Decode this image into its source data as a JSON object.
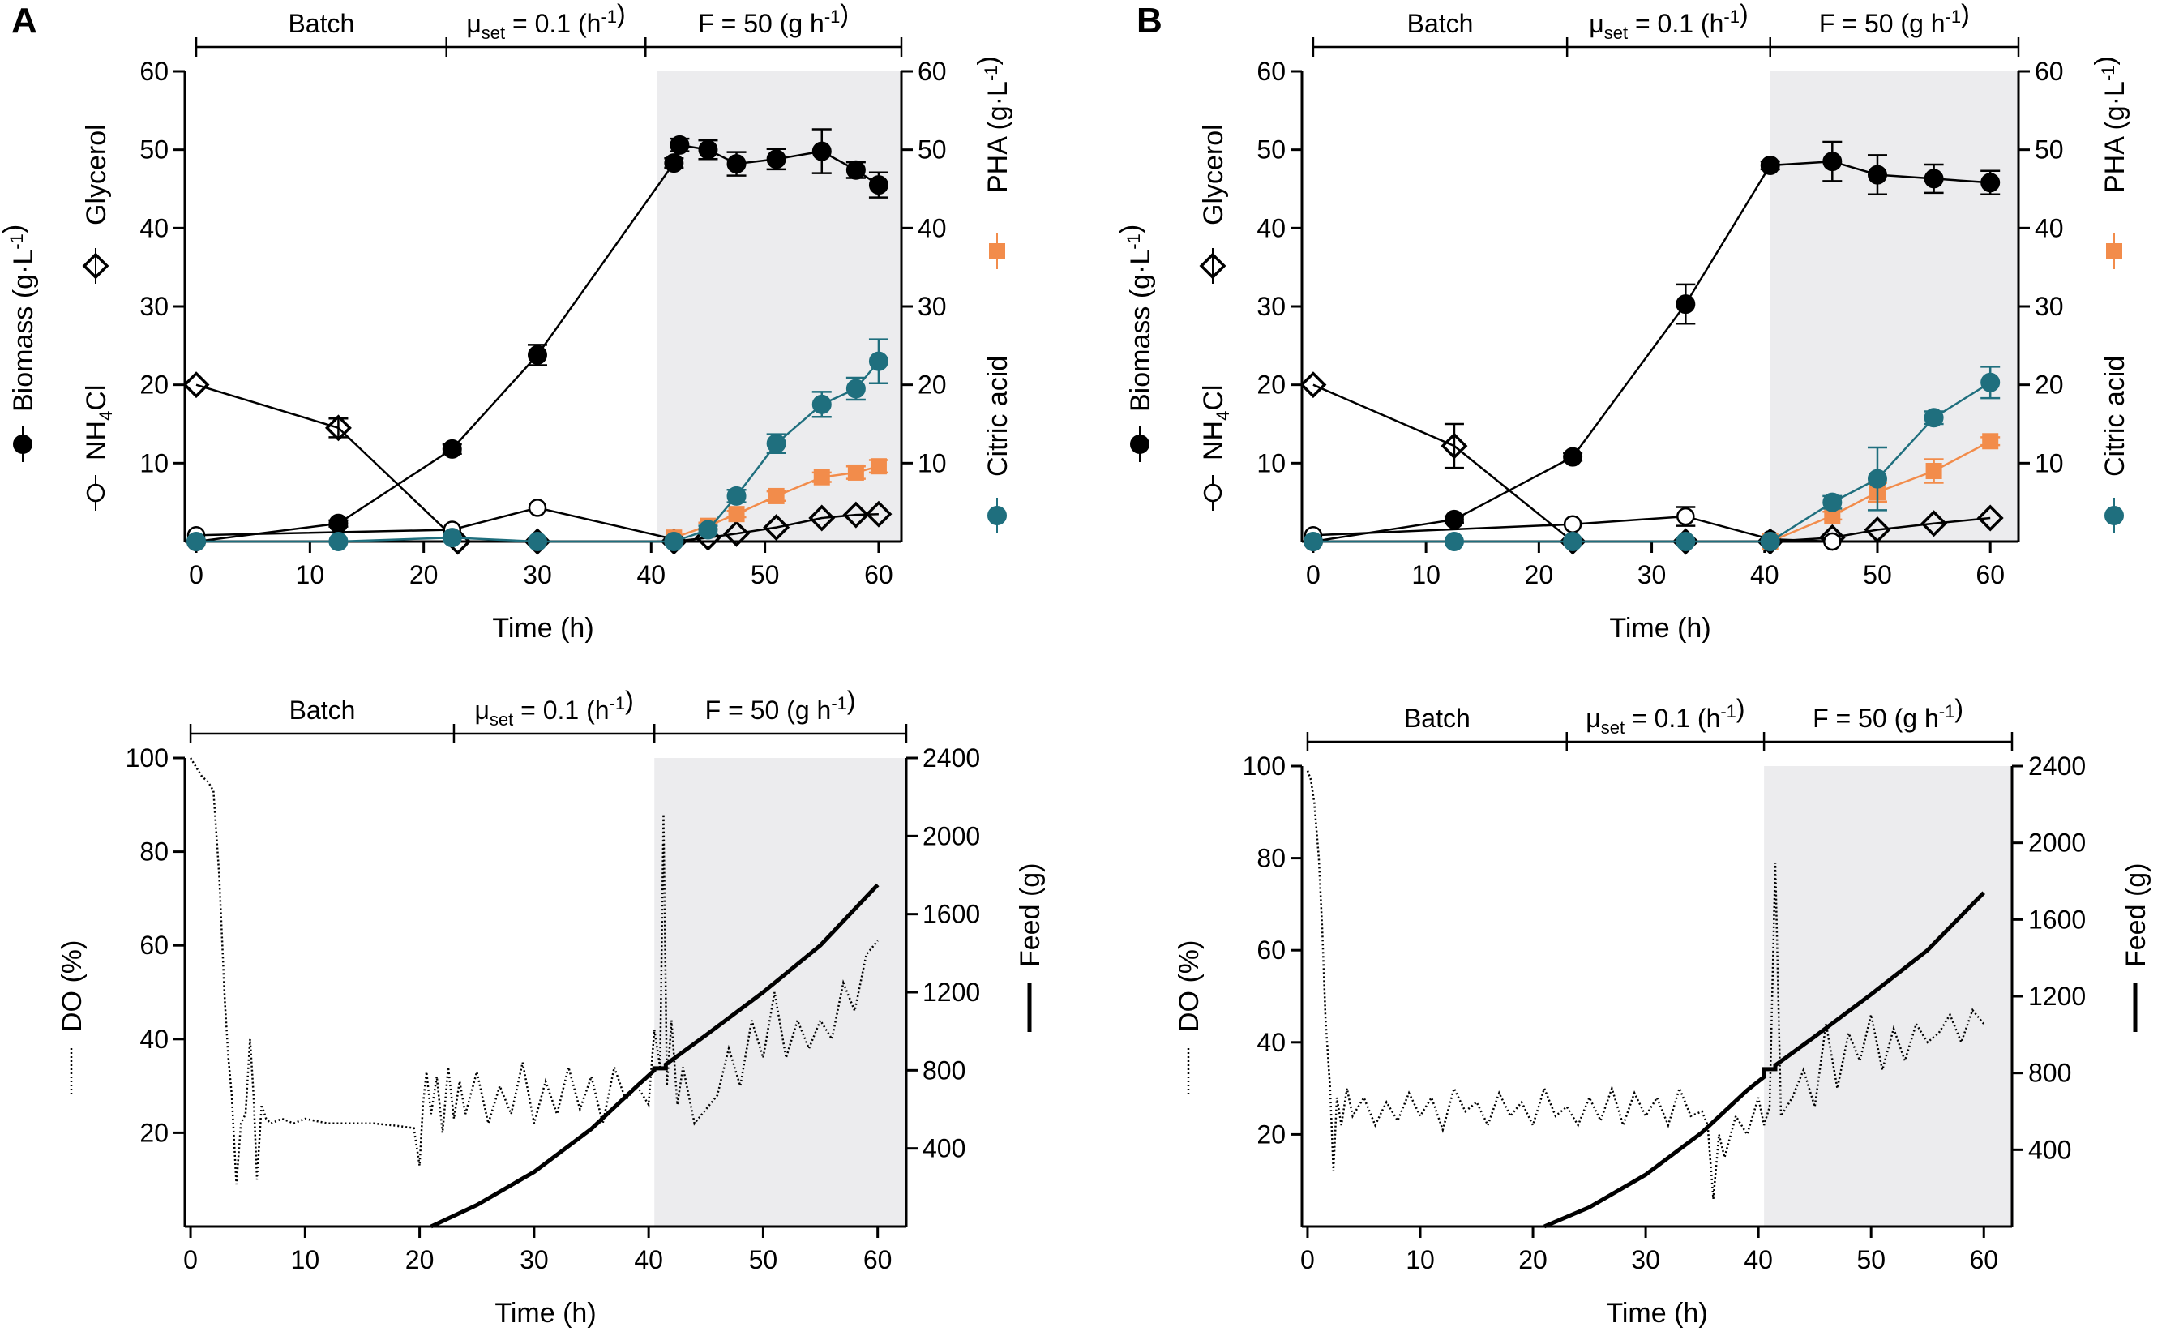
{
  "figure": {
    "panels": [
      {
        "letter": "A"
      },
      {
        "letter": "B"
      }
    ]
  },
  "colors": {
    "biomass": "#000000",
    "pha": "#f28c4b",
    "citric": "#1f6f7e",
    "shade": "#ececee"
  },
  "chart_data": [
    {
      "id": "A-top",
      "type": "scatter",
      "panel": "A",
      "phases": [
        {
          "label": "Batch",
          "x_start": 0,
          "x_end": 22
        },
        {
          "label": "μset = 0.1 (h⁻¹)",
          "x_start": 22,
          "x_end": 39.5
        },
        {
          "label": "F = 50 (g h⁻¹)",
          "x_start": 39.5,
          "x_end": 61
        }
      ],
      "shaded_region": [
        40.5,
        61
      ],
      "xlabel": "Time (h)",
      "xlim": [
        -1,
        62
      ],
      "xticks": [
        0,
        10,
        20,
        30,
        40,
        50,
        60
      ],
      "ylim": [
        0,
        60
      ],
      "yticks": [
        10,
        20,
        30,
        40,
        50,
        60
      ],
      "y2lim": [
        0,
        60
      ],
      "y2ticks": [
        10,
        20,
        30,
        40,
        50,
        60
      ],
      "ylabel": "Biomass (g·L⁻¹), NH4Cl, Glycerol",
      "y2label": "PHA (g·L⁻¹), Citric acid",
      "series": [
        {
          "name": "Biomass",
          "marker": "filled-circle",
          "x": [
            0,
            12.5,
            22.5,
            30,
            42,
            42.5,
            45,
            47.5,
            51,
            55,
            58,
            60
          ],
          "y": [
            0,
            2.3,
            11.8,
            23.8,
            48.3,
            50.6,
            50,
            48.2,
            48.8,
            49.8,
            47.4,
            45.5
          ],
          "err": [
            0,
            0.4,
            0.6,
            1.3,
            0.6,
            0.8,
            1.2,
            1.5,
            1.3,
            2.8,
            1.0,
            1.6
          ]
        },
        {
          "name": "Glycerol",
          "marker": "open-diamond",
          "x": [
            0,
            12.5,
            23,
            30,
            42,
            45,
            47.5,
            51,
            55,
            58,
            60
          ],
          "y": [
            20,
            14.5,
            0,
            0,
            0,
            0.5,
            1,
            1.8,
            3,
            3.4,
            3.5
          ],
          "err": [
            0,
            1.2,
            0,
            0,
            0,
            0,
            0,
            0,
            0,
            0,
            0
          ]
        },
        {
          "name": "NH4Cl",
          "marker": "open-circle",
          "x": [
            0,
            22.5,
            30,
            42
          ],
          "y": [
            0.8,
            1.5,
            4.3,
            0.3
          ],
          "err": [
            0,
            0,
            0,
            0
          ]
        },
        {
          "name": "PHA",
          "marker": "filled-square",
          "axis": "right",
          "x": [
            42,
            45,
            47.5,
            51,
            55,
            58,
            60
          ],
          "y": [
            0.5,
            2,
            3.5,
            5.8,
            8.2,
            8.8,
            9.6
          ],
          "err": [
            0,
            0.4,
            0.4,
            0.6,
            0.6,
            0.8,
            0.8
          ]
        },
        {
          "name": "Citric acid",
          "marker": "filled-circle",
          "axis": "right",
          "x": [
            0,
            12.5,
            22.5,
            30,
            42,
            45,
            47.5,
            51,
            55,
            58,
            60
          ],
          "y": [
            0,
            0,
            0.5,
            0,
            0,
            1.5,
            5.8,
            12.5,
            17.5,
            19.5,
            23
          ],
          "err": [
            0,
            0,
            0,
            0,
            0,
            0.5,
            0.8,
            1.2,
            1.6,
            1.4,
            2.8
          ]
        }
      ]
    },
    {
      "id": "B-top",
      "type": "scatter",
      "panel": "B",
      "phases": [
        {
          "label": "Batch",
          "x_start": 0,
          "x_end": 22.5
        },
        {
          "label": "μset = 0.1 (h⁻¹)",
          "x_start": 22.5,
          "x_end": 40.5
        },
        {
          "label": "F = 50 (g h⁻¹)",
          "x_start": 40.5,
          "x_end": 62
        }
      ],
      "shaded_region": [
        40.5,
        62
      ],
      "xlabel": "Time (h)",
      "xlim": [
        -1,
        62.5
      ],
      "xticks": [
        0,
        10,
        20,
        30,
        40,
        50,
        60
      ],
      "ylim": [
        0,
        60
      ],
      "yticks": [
        10,
        20,
        30,
        40,
        50,
        60
      ],
      "y2lim": [
        0,
        60
      ],
      "y2ticks": [
        10,
        20,
        30,
        40,
        50,
        60
      ],
      "ylabel": "Biomass (g·L⁻¹), NH4Cl, Glycerol",
      "y2label": "PHA (g·L⁻¹), Citric acid",
      "series": [
        {
          "name": "Biomass",
          "marker": "filled-circle",
          "x": [
            0,
            12.5,
            23,
            33,
            40.5,
            46,
            50,
            55,
            60
          ],
          "y": [
            0,
            2.8,
            10.8,
            30.3,
            48,
            48.5,
            46.8,
            46.3,
            45.8
          ],
          "err": [
            0,
            0.4,
            0.5,
            2.5,
            0.5,
            2.5,
            2.5,
            1.8,
            1.5
          ]
        },
        {
          "name": "Glycerol",
          "marker": "open-diamond",
          "x": [
            0,
            12.5,
            23,
            33,
            40.5,
            46,
            50,
            55,
            60
          ],
          "y": [
            20,
            12.2,
            0,
            0,
            0,
            0.5,
            1.5,
            2.3,
            3
          ],
          "err": [
            0,
            2.8,
            0,
            0,
            0,
            0,
            0,
            0,
            0
          ]
        },
        {
          "name": "NH4Cl",
          "marker": "open-circle",
          "x": [
            0,
            23,
            33,
            40.5,
            46
          ],
          "y": [
            0.8,
            2.2,
            3.2,
            0.3,
            0
          ],
          "err": [
            0,
            0,
            1.2,
            0,
            0
          ]
        },
        {
          "name": "PHA",
          "marker": "filled-square",
          "axis": "right",
          "x": [
            40.5,
            46,
            50,
            55,
            60
          ],
          "y": [
            0,
            3.3,
            6.3,
            9,
            12.8
          ],
          "err": [
            0,
            0.5,
            1.2,
            1.5,
            0.5
          ]
        },
        {
          "name": "Citric acid",
          "marker": "filled-circle",
          "axis": "right",
          "x": [
            0,
            12.5,
            23,
            33,
            40.5,
            46,
            50,
            55,
            60
          ],
          "y": [
            0,
            0,
            0,
            0,
            0,
            5,
            8,
            15.8,
            20.3
          ],
          "err": [
            0,
            0,
            0,
            0,
            0,
            0.8,
            4,
            0.8,
            2
          ]
        }
      ]
    },
    {
      "id": "A-bottom",
      "type": "line",
      "panel": "A",
      "phases": [
        {
          "label": "Batch",
          "x_start": 0,
          "x_end": 23
        },
        {
          "label": "μset = 0.1 (h⁻¹)",
          "x_start": 23,
          "x_end": 40.5
        },
        {
          "label": "F = 50 (g h⁻¹)",
          "x_start": 40.5,
          "x_end": 62
        }
      ],
      "shaded_region": [
        40.5,
        62
      ],
      "xlabel": "Time (h)",
      "xlim": [
        -0.5,
        62.5
      ],
      "xticks": [
        0,
        10,
        20,
        30,
        40,
        50,
        60
      ],
      "ylim": [
        0,
        100
      ],
      "yticks": [
        20,
        40,
        60,
        80,
        100
      ],
      "y2lim": [
        0,
        2400
      ],
      "y2ticks": [
        400,
        800,
        1200,
        1600,
        2000,
        2400
      ],
      "ylabel": "DO (%)",
      "y2label": "Feed (g)",
      "series": [
        {
          "name": "DO",
          "style": "dotted",
          "x": [
            0,
            0.5,
            1,
            1.5,
            2,
            2.5,
            3,
            3.3,
            3.6,
            4,
            4.4,
            4.8,
            5.2,
            5.5,
            5.8,
            6.2,
            6.6,
            7,
            8,
            9,
            10,
            12,
            14,
            16,
            18,
            19.5,
            20,
            20.3,
            20.6,
            21,
            21.5,
            22,
            22.5,
            23,
            23.5,
            24,
            25,
            26,
            27,
            28,
            29,
            30,
            31,
            32,
            33,
            34,
            35,
            36,
            37,
            38,
            39,
            40,
            40.5,
            41,
            41.3,
            41.6,
            42,
            42.5,
            43,
            44,
            45,
            46,
            47,
            48,
            49,
            50,
            51,
            52,
            53,
            54,
            55,
            56,
            57,
            58,
            59,
            60
          ],
          "y": [
            100,
            98,
            96,
            95,
            93,
            75,
            48,
            36,
            28,
            9,
            22,
            24,
            40,
            28,
            10,
            26,
            23,
            22,
            23,
            22,
            23,
            22,
            22,
            22,
            21.5,
            21,
            13,
            26,
            33,
            24,
            32,
            20,
            34,
            23,
            31,
            24,
            33,
            22,
            30,
            24,
            35,
            22,
            31,
            24,
            34,
            25,
            32,
            22,
            34,
            27,
            30,
            26,
            42,
            34,
            88,
            30,
            44,
            26,
            34,
            22,
            25,
            28,
            38,
            30,
            44,
            36,
            50,
            36,
            44,
            38,
            44,
            40,
            52,
            46,
            58,
            61
          ]
        },
        {
          "name": "Feed",
          "style": "solid",
          "axis": "right",
          "x": [
            21,
            25,
            30,
            35,
            39,
            40.5,
            40.5,
            41.5,
            41.5,
            45,
            50,
            55,
            60
          ],
          "y": [
            0,
            110,
            280,
            500,
            720,
            800,
            810,
            810,
            830,
            980,
            1200,
            1440,
            1750
          ]
        }
      ]
    },
    {
      "id": "B-bottom",
      "type": "line",
      "panel": "B",
      "phases": [
        {
          "label": "Batch",
          "x_start": 0,
          "x_end": 23
        },
        {
          "label": "μset = 0.1 (h⁻¹)",
          "x_start": 23,
          "x_end": 40.5
        },
        {
          "label": "F = 50 (g h⁻¹)",
          "x_start": 40.5,
          "x_end": 62
        }
      ],
      "shaded_region": [
        40.5,
        62
      ],
      "xlabel": "Time (h)",
      "xlim": [
        -0.5,
        62.5
      ],
      "xticks": [
        0,
        10,
        20,
        30,
        40,
        50,
        60
      ],
      "ylim": [
        0,
        100
      ],
      "yticks": [
        20,
        40,
        60,
        80,
        100
      ],
      "y2lim": [
        0,
        2400
      ],
      "y2ticks": [
        400,
        800,
        1200,
        1600,
        2000,
        2400
      ],
      "ylabel": "DO (%)",
      "y2label": "Feed (g)",
      "series": [
        {
          "name": "DO",
          "style": "dotted",
          "x": [
            0,
            0.3,
            0.6,
            1,
            1.3,
            1.6,
            2,
            2.3,
            2.6,
            3,
            3.5,
            4,
            5,
            6,
            7,
            8,
            9,
            10,
            11,
            12,
            13,
            14,
            15,
            16,
            17,
            18,
            19,
            20,
            21,
            22,
            23,
            24,
            25,
            26,
            27,
            28,
            29,
            30,
            31,
            32,
            33,
            34,
            35,
            35.5,
            36,
            36.5,
            37,
            38,
            39,
            40,
            40.5,
            41,
            41.5,
            42,
            43,
            44,
            45,
            46,
            47,
            48,
            49,
            50,
            51,
            52,
            53,
            54,
            55,
            56,
            57,
            58,
            59,
            60
          ],
          "y": [
            99,
            97,
            92,
            80,
            65,
            45,
            30,
            12,
            28,
            22,
            30,
            24,
            28,
            22,
            27,
            23,
            29,
            24,
            28,
            21,
            30,
            25,
            27,
            22,
            29,
            24,
            27,
            22,
            30,
            24,
            26,
            22,
            28,
            23,
            30,
            22,
            29,
            24,
            28,
            22,
            30,
            24,
            25,
            22,
            6,
            20,
            15,
            24,
            20,
            28,
            22,
            26,
            79,
            24,
            28,
            34,
            26,
            44,
            30,
            42,
            36,
            46,
            34,
            43,
            36,
            44,
            40,
            42,
            46,
            40,
            47,
            44
          ]
        },
        {
          "name": "Feed",
          "style": "solid",
          "axis": "right",
          "x": [
            21,
            25,
            30,
            35,
            39,
            40.5,
            40.5,
            41.5,
            41.5,
            45,
            50,
            55,
            60
          ],
          "y": [
            0,
            100,
            270,
            490,
            710,
            780,
            820,
            820,
            840,
            990,
            1210,
            1440,
            1740
          ]
        }
      ]
    }
  ]
}
